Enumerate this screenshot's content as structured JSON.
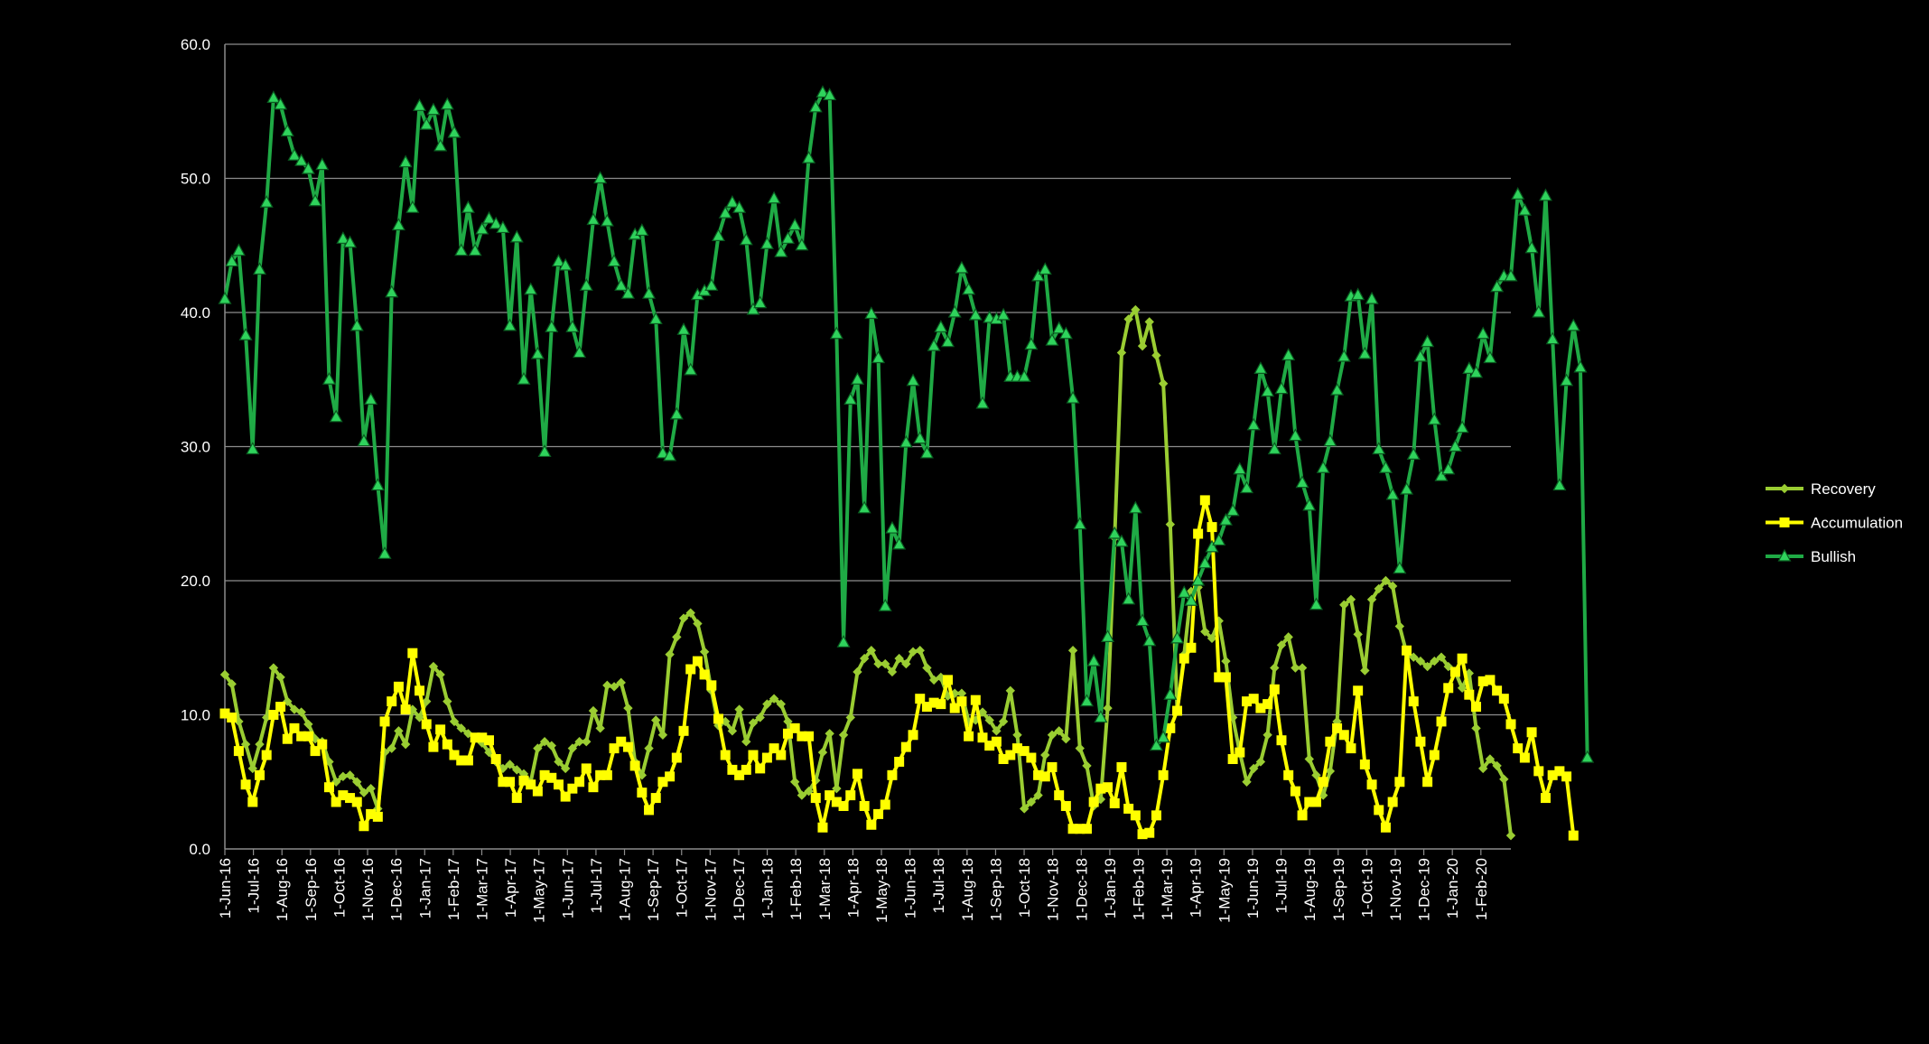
{
  "chart_data": {
    "type": "line",
    "title": "",
    "xlabel": "",
    "ylabel": "",
    "ylim": [
      0,
      60
    ],
    "yticks": [
      "0.0",
      "10.0",
      "20.0",
      "30.0",
      "40.0",
      "50.0",
      "60.0"
    ],
    "grid": "horizontal",
    "legend_position": "right",
    "x_tick_labels": [
      "1-Jun-16",
      "1-Jul-16",
      "1-Aug-16",
      "1-Sep-16",
      "1-Oct-16",
      "1-Nov-16",
      "1-Dec-16",
      "1-Jan-17",
      "1-Feb-17",
      "1-Mar-17",
      "1-Apr-17",
      "1-May-17",
      "1-Jun-17",
      "1-Jul-17",
      "1-Aug-17",
      "1-Sep-17",
      "1-Oct-17",
      "1-Nov-17",
      "1-Dec-17",
      "1-Jan-18",
      "1-Feb-18",
      "1-Mar-18",
      "1-Apr-18",
      "1-May-18",
      "1-Jun-18",
      "1-Jul-18",
      "1-Aug-18",
      "1-Sep-18",
      "1-Oct-18",
      "1-Nov-18",
      "1-Dec-18",
      "1-Jan-19",
      "1-Feb-19",
      "1-Mar-19",
      "1-Apr-19",
      "1-May-19",
      "1-Jun-19",
      "1-Jul-19",
      "1-Aug-19",
      "1-Sep-19",
      "1-Oct-19",
      "1-Nov-19",
      "1-Dec-19",
      "1-Jan-20",
      "1-Feb-20"
    ],
    "series": [
      {
        "name": "Recovery",
        "color": "#9acd32",
        "marker": "diamond",
        "values": [
          13.0,
          12.3,
          9.5,
          7.8,
          6.0,
          7.8,
          9.8,
          13.5,
          12.8,
          11.0,
          10.4,
          10.2,
          9.3,
          8.2,
          8.0,
          6.5,
          5.0,
          5.4,
          5.5,
          5.0,
          4.2,
          4.5,
          3.0,
          7.2,
          7.5,
          8.8,
          7.8,
          10.4,
          9.8,
          11.0,
          13.6,
          13.0,
          11.0,
          9.5,
          9.0,
          8.6,
          8.3,
          7.9,
          7.2,
          6.5,
          6.0,
          6.3,
          5.9,
          5.6,
          5.0,
          7.5,
          8.0,
          7.7,
          6.5,
          6.0,
          7.5,
          8.0,
          8.0,
          10.3,
          9.0,
          12.2,
          12.1,
          12.4,
          10.5,
          6.5,
          5.5,
          7.5,
          9.6,
          8.5,
          14.5,
          15.8,
          17.2,
          17.6,
          16.8,
          14.7,
          11.8,
          9.2,
          9.5,
          8.8,
          10.4,
          8.0,
          9.4,
          9.8,
          10.8,
          11.2,
          10.8,
          9.5,
          5.0,
          4.0,
          4.3,
          5.1,
          7.2,
          8.6,
          4.5,
          8.5,
          9.8,
          13.2,
          14.2,
          14.8,
          13.8,
          13.8,
          13.2,
          14.2,
          13.8,
          14.7,
          14.8,
          13.5,
          12.6,
          12.8,
          11.4,
          11.6,
          11.6,
          9.5,
          9.6,
          10.2,
          9.6,
          8.8,
          9.5,
          11.8,
          8.5,
          3.0,
          3.5,
          4.0,
          7.0,
          8.5,
          8.8,
          8.2,
          14.8,
          7.5,
          6.2,
          3.2,
          3.7,
          10.5,
          23.2,
          37.0,
          39.5,
          40.2,
          37.5,
          39.3,
          36.8,
          34.7,
          24.2,
          10.3,
          14.5,
          19.2,
          19.5,
          16.2,
          15.7,
          17.0,
          14.0,
          9.8,
          7.2,
          5.0,
          6.0,
          6.5,
          8.5,
          13.5,
          15.2,
          15.8,
          13.5,
          13.5,
          6.7,
          5.5,
          4.0,
          5.8,
          9.5,
          18.2,
          18.6,
          16.0,
          13.3,
          18.6,
          19.4,
          20.0,
          19.6,
          16.6,
          14.6,
          14.3,
          14.0,
          13.6,
          14.0,
          14.3,
          13.6,
          13.2,
          12.0,
          13.1,
          9.0,
          6.0,
          6.7,
          6.2,
          5.2,
          1.0
        ]
      },
      {
        "name": "Accumulation",
        "color": "#ffff00",
        "marker": "square",
        "values": [
          10.1,
          9.8,
          7.3,
          4.8,
          3.5,
          5.5,
          7.0,
          10.0,
          10.6,
          8.2,
          9.0,
          8.4,
          8.4,
          7.3,
          7.8,
          4.6,
          3.5,
          4.0,
          3.8,
          3.5,
          1.7,
          2.6,
          2.4,
          9.5,
          11.0,
          12.1,
          10.4,
          14.6,
          11.8,
          9.3,
          7.6,
          8.9,
          7.8,
          7.0,
          6.6,
          6.6,
          8.3,
          8.3,
          8.1,
          6.7,
          5.0,
          5.0,
          3.8,
          5.1,
          4.8,
          4.3,
          5.5,
          5.3,
          4.8,
          3.9,
          4.5,
          5.0,
          6.0,
          4.6,
          5.5,
          5.5,
          7.5,
          8.0,
          7.6,
          6.2,
          4.2,
          2.9,
          3.8,
          5.0,
          5.4,
          6.8,
          8.8,
          13.4,
          14.0,
          13.0,
          12.2,
          9.7,
          7.0,
          5.9,
          5.5,
          5.9,
          7.0,
          6.0,
          6.8,
          7.5,
          7.0,
          8.6,
          9.0,
          8.4,
          8.4,
          3.8,
          1.6,
          4.0,
          3.5,
          3.2,
          4.0,
          5.6,
          3.2,
          1.8,
          2.6,
          3.3,
          5.5,
          6.5,
          7.6,
          8.5,
          11.2,
          10.6,
          10.9,
          10.8,
          12.6,
          10.5,
          11.0,
          8.4,
          11.1,
          8.3,
          7.7,
          8.0,
          6.7,
          7.0,
          7.5,
          7.3,
          6.8,
          5.5,
          5.4,
          6.1,
          4.0,
          3.2,
          1.5,
          1.5,
          1.5,
          3.5,
          4.5,
          4.6,
          3.4,
          6.1,
          3.0,
          2.5,
          1.1,
          1.2,
          2.5,
          5.5,
          9.0,
          10.3,
          14.2,
          15.0,
          23.5,
          26.0,
          24.0,
          12.8,
          12.8,
          6.7,
          7.2,
          11.0,
          11.2,
          10.5,
          10.8,
          11.9,
          8.1,
          5.5,
          4.3,
          2.5,
          3.5,
          3.5,
          5.0,
          8.0,
          9.0,
          8.5,
          7.5,
          11.8,
          6.3,
          4.8,
          2.9,
          1.6,
          3.5,
          5.0,
          14.8,
          11.0,
          8.0,
          5.0,
          7.0,
          9.5,
          12.0,
          13.2,
          14.2,
          11.5,
          10.6,
          12.5,
          12.6,
          11.8,
          11.2,
          9.3,
          7.5,
          6.8,
          8.7,
          5.8,
          3.8,
          5.5,
          5.8,
          5.4,
          1.0
        ]
      },
      {
        "name": "Bullish",
        "color": "#1faa45",
        "marker": "triangle",
        "values": [
          41.0,
          43.8,
          44.6,
          38.3,
          29.8,
          43.2,
          48.2,
          56.0,
          55.5,
          53.5,
          51.7,
          51.3,
          50.7,
          48.3,
          51.0,
          35.0,
          32.2,
          45.5,
          45.2,
          39.0,
          30.4,
          33.5,
          27.1,
          22.0,
          41.5,
          46.5,
          51.2,
          47.8,
          55.4,
          54.0,
          55.1,
          52.4,
          55.5,
          53.4,
          44.6,
          47.8,
          44.6,
          46.2,
          47.0,
          46.6,
          46.3,
          39.0,
          45.6,
          35.0,
          41.7,
          36.9,
          29.6,
          38.9,
          43.8,
          43.5,
          38.9,
          37.0,
          42.0,
          46.9,
          50.0,
          46.8,
          43.8,
          42.0,
          41.4,
          45.8,
          46.1,
          41.4,
          39.5,
          29.5,
          29.3,
          32.4,
          38.7,
          35.7,
          41.3,
          41.6,
          42.0,
          45.7,
          47.4,
          48.2,
          47.8,
          45.4,
          40.2,
          40.7,
          45.1,
          48.5,
          44.5,
          45.5,
          46.5,
          45.0,
          51.5,
          55.3,
          56.4,
          56.2,
          38.4,
          15.4,
          33.5,
          35.0,
          25.4,
          39.9,
          36.6,
          18.1,
          23.9,
          22.7,
          30.3,
          34.9,
          30.6,
          29.5,
          37.5,
          38.9,
          37.8,
          40.0,
          43.3,
          41.7,
          39.8,
          33.2,
          39.6,
          39.5,
          39.8,
          35.2,
          35.2,
          35.2,
          37.6,
          42.7,
          43.2,
          37.9,
          38.8,
          38.4,
          33.6,
          24.2,
          11.0,
          14.0,
          9.8,
          15.8,
          23.5,
          22.9,
          18.6,
          25.4,
          17.0,
          15.5,
          7.7,
          8.3,
          11.5,
          15.7,
          19.1,
          18.5,
          20.0,
          21.3,
          22.5,
          23.0,
          24.5,
          25.2,
          28.3,
          26.9,
          31.6,
          35.8,
          34.1,
          29.8,
          34.3,
          36.8,
          30.8,
          27.3,
          25.6,
          18.2,
          28.4,
          30.4,
          34.2,
          36.7,
          41.2,
          41.3,
          36.9,
          41.0,
          29.8,
          28.4,
          26.4,
          20.9,
          26.8,
          29.4,
          36.7,
          37.8,
          32.0,
          27.8,
          28.3,
          30.0,
          31.4,
          35.8,
          35.5,
          38.4,
          36.6,
          41.9,
          42.7,
          42.7,
          48.8,
          47.6,
          44.8,
          40.0,
          48.7,
          38.0,
          27.1,
          34.9,
          39.0,
          35.9,
          6.8
        ]
      }
    ]
  }
}
